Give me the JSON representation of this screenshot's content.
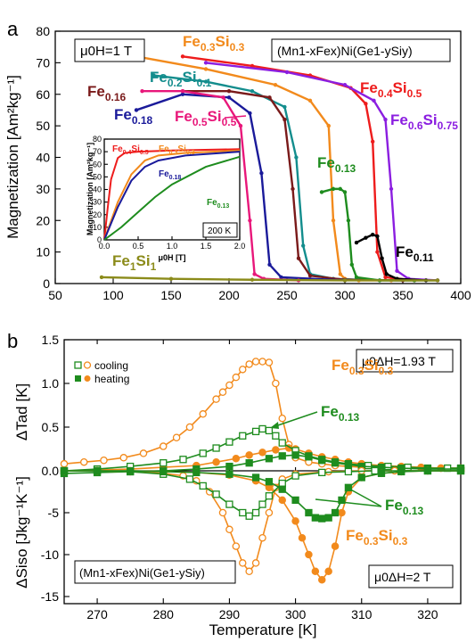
{
  "panel_labels": {
    "a": "a",
    "b": "b"
  },
  "chart_data": [
    {
      "type": "line",
      "panel": "a",
      "ylabel": "Magnetization [Am²kg⁻¹]",
      "xlim": [
        50,
        400
      ],
      "ylim": [
        0,
        80
      ],
      "xticks": [
        50,
        100,
        150,
        200,
        250,
        300,
        350,
        400
      ],
      "yticks": [
        0,
        10,
        20,
        30,
        40,
        50,
        60,
        70,
        80
      ],
      "field_box": "μ0H=1 T",
      "formula_box": "(Mn1-xFex)Ni(Ge1-ySiy)",
      "series": [
        {
          "label": "Fe0.3Si0.3",
          "color": "#f28a1c",
          "x": [
            120,
            180,
            240,
            270,
            286,
            290,
            296,
            300,
            312,
            340,
            380
          ],
          "y": [
            72,
            68,
            63,
            58,
            50,
            20,
            3,
            1.5,
            1,
            1,
            1
          ]
        },
        {
          "label": "Fe0.2Si0.1",
          "color": "#138d8d",
          "x": [
            135,
            180,
            220,
            248,
            258,
            264,
            270,
            290,
            330,
            380
          ],
          "y": [
            66,
            64,
            61,
            56,
            40,
            12,
            3,
            1.5,
            1,
            1
          ]
        },
        {
          "label": "Fe0.16",
          "color": "#7a1a1a",
          "x": [
            160,
            200,
            235,
            248,
            255,
            260,
            270,
            300,
            350
          ],
          "y": [
            61,
            61,
            59,
            52,
            30,
            8,
            2.5,
            1.2,
            1
          ]
        },
        {
          "label": "Fe0.18",
          "color": "#1a1a9a",
          "x": [
            120,
            160,
            200,
            218,
            228,
            235,
            245,
            300
          ],
          "y": [
            55,
            60,
            59,
            54,
            35,
            6,
            2,
            1
          ]
        },
        {
          "label": "Fe0.5Si0.5",
          "color": "#e8177a",
          "x": [
            125,
            160,
            195,
            210,
            218,
            222,
            230,
            260
          ],
          "y": [
            61,
            61,
            59,
            50,
            20,
            3,
            1.5,
            1
          ]
        },
        {
          "label": "Fe0.4Si0.5",
          "color": "#ee1c1c",
          "x": [
            160,
            220,
            270,
            305,
            318,
            324,
            328,
            335,
            360
          ],
          "y": [
            72,
            69,
            66,
            62,
            57,
            45,
            10,
            2,
            1
          ]
        },
        {
          "label": "Fe0.6Si0.75",
          "color": "#8b1ee0",
          "x": [
            180,
            250,
            300,
            325,
            335,
            340,
            345,
            355,
            380
          ],
          "y": [
            70,
            67,
            63,
            58,
            52,
            30,
            4,
            1.5,
            1
          ]
        },
        {
          "label": "Fe0.13",
          "color": "#1e8c1e",
          "x": [
            280,
            290,
            296,
            300,
            303,
            306,
            310,
            330,
            360
          ],
          "y": [
            29,
            30,
            30,
            29,
            20,
            6,
            2,
            1,
            1
          ]
        },
        {
          "label": "Fe0.11",
          "color": "#000000",
          "x": [
            310,
            318,
            324,
            328,
            332,
            336,
            345,
            370
          ],
          "y": [
            13,
            14.5,
            15.5,
            15,
            8,
            3,
            1.5,
            1
          ]
        },
        {
          "label": "Fe1Si1",
          "color": "#8b8b1a",
          "x": [
            90,
            150,
            220,
            300,
            380
          ],
          "y": [
            2,
            1.5,
            1.2,
            1,
            1
          ]
        }
      ],
      "annotations": [
        {
          "text": "Fe",
          "sub": "0.3",
          "text2": "Si",
          "sub2": "0.3",
          "color": "#f28a1c"
        },
        {
          "text": "Fe",
          "sub": "0.2",
          "text2": "Si",
          "sub2": "0.1",
          "color": "#138d8d"
        },
        {
          "text": "Fe",
          "sub": "0.16",
          "color": "#7a1a1a"
        },
        {
          "text": "Fe",
          "sub": "0.18",
          "color": "#1a1a9a"
        },
        {
          "text": "Fe",
          "sub": "0.5",
          "text2": "Si",
          "sub2": "0.5",
          "color": "#e8177a"
        },
        {
          "text": "Fe",
          "sub": "0.4",
          "text2": "Si",
          "sub2": "0.5",
          "color": "#ee1c1c"
        },
        {
          "text": "Fe",
          "sub": "0.6",
          "text2": "Si",
          "sub2": "0.75",
          "color": "#8b1ee0"
        },
        {
          "text": "Fe",
          "sub": "0.13",
          "color": "#1e8c1e"
        },
        {
          "text": "Fe",
          "sub": "0.11",
          "color": "#000000"
        },
        {
          "text": "Fe",
          "sub": "1",
          "text2": "Si",
          "sub2": "1",
          "color": "#8b8b1a"
        }
      ]
    },
    {
      "type": "line",
      "panel": "a-inset",
      "xlabel": "μ0H [T]",
      "ylabel": "Magnetization [Am²kg⁻¹]",
      "xlim": [
        0,
        2
      ],
      "ylim": [
        0,
        80
      ],
      "xticks": [
        0.0,
        0.5,
        1.0,
        1.5,
        2.0
      ],
      "yticks": [
        0,
        10,
        20,
        30,
        40,
        50,
        60,
        70,
        80
      ],
      "temp_box": "200 K",
      "series": [
        {
          "label": "Fe0.4Si0.5",
          "color": "#ee1c1c",
          "x": [
            0,
            0.05,
            0.1,
            0.2,
            0.3,
            0.5,
            1.0,
            2.0
          ],
          "y": [
            0,
            25,
            48,
            65,
            69,
            70,
            71,
            72
          ]
        },
        {
          "label": "Fe0.3Si0.3",
          "color": "#f28a1c",
          "x": [
            0,
            0.1,
            0.2,
            0.4,
            0.6,
            0.8,
            1.2,
            2.0
          ],
          "y": [
            0,
            15,
            30,
            52,
            63,
            67,
            69,
            71
          ]
        },
        {
          "label": "Fe0.18",
          "color": "#1a1a9a",
          "x": [
            0,
            0.1,
            0.2,
            0.4,
            0.6,
            0.8,
            1.2,
            2.0
          ],
          "y": [
            0,
            13,
            26,
            47,
            58,
            63,
            67,
            70
          ]
        },
        {
          "label": "Fe0.13",
          "color": "#1e8c1e",
          "x": [
            0,
            0.25,
            0.5,
            0.75,
            1.0,
            1.5,
            2.0
          ],
          "y": [
            0,
            10,
            22,
            34,
            44,
            58,
            66
          ]
        }
      ],
      "annotations": [
        {
          "text": "Fe",
          "sub": "0.4",
          "text2": "Si",
          "sub2": "0.5",
          "color": "#ee1c1c"
        },
        {
          "text": "Fe",
          "sub": "0.3",
          "text2": "Si",
          "sub2": "0.3",
          "color": "#f28a1c"
        },
        {
          "text": "Fe",
          "sub": "0.18",
          "color": "#1a1a9a"
        },
        {
          "text": "Fe",
          "sub": "0.13",
          "color": "#1e8c1e"
        }
      ]
    },
    {
      "type": "line",
      "panel": "b-top",
      "ylabel": "ΔTad [K]",
      "xlim": [
        265,
        325
      ],
      "ylim": [
        -0.15,
        1.5
      ],
      "yticks": [
        0.0,
        0.5,
        1.0,
        1.5
      ],
      "field_box": "μ0ΔH=1.93 T",
      "legend": {
        "cooling": "cooling",
        "heating": "heating"
      },
      "series": [
        {
          "label": "Fe0.3Si0.3 cooling",
          "color": "#f28a1c",
          "marker": "open-circle",
          "x": [
            265,
            268,
            271,
            274,
            277,
            280,
            282,
            284,
            286,
            288,
            289,
            290,
            291,
            292,
            293,
            294,
            295,
            296,
            297,
            298,
            299,
            300,
            302,
            304,
            306,
            308,
            310,
            313,
            316,
            319,
            322,
            325
          ],
          "y": [
            0.08,
            0.1,
            0.12,
            0.15,
            0.2,
            0.28,
            0.38,
            0.5,
            0.65,
            0.82,
            0.9,
            0.98,
            1.07,
            1.16,
            1.22,
            1.25,
            1.25,
            1.24,
            1.0,
            0.6,
            0.3,
            0.15,
            0.1,
            0.08,
            0.06,
            0.05,
            0.04,
            0.04,
            0.03,
            0.03,
            0.03,
            0.03
          ]
        },
        {
          "label": "Fe0.3Si0.3 heating",
          "color": "#f28a1c",
          "marker": "filled-circle",
          "x": [
            265,
            270,
            275,
            280,
            285,
            288,
            291,
            293,
            295,
            297,
            299,
            300,
            302,
            304,
            306,
            308,
            310,
            313,
            316,
            319,
            322,
            325
          ],
          "y": [
            0.0,
            0.01,
            0.02,
            0.04,
            0.06,
            0.1,
            0.14,
            0.18,
            0.21,
            0.24,
            0.26,
            0.25,
            0.2,
            0.16,
            0.13,
            0.1,
            0.08,
            0.06,
            0.05,
            0.04,
            0.03,
            0.03
          ]
        },
        {
          "label": "Fe0.13 cooling",
          "color": "#1e8c1e",
          "marker": "open-square",
          "x": [
            265,
            270,
            275,
            280,
            283,
            286,
            288,
            290,
            292,
            294,
            295,
            296,
            297,
            298,
            300,
            302,
            304,
            306,
            308,
            311,
            314,
            317,
            320,
            323,
            325
          ],
          "y": [
            0.0,
            0.02,
            0.05,
            0.09,
            0.13,
            0.2,
            0.26,
            0.33,
            0.4,
            0.45,
            0.48,
            0.46,
            0.4,
            0.32,
            0.23,
            0.17,
            0.13,
            0.1,
            0.08,
            0.06,
            0.05,
            0.04,
            0.03,
            0.03,
            0.03
          ]
        },
        {
          "label": "Fe0.13 heating",
          "color": "#1e8c1e",
          "marker": "filled-square",
          "x": [
            265,
            270,
            275,
            280,
            285,
            290,
            293,
            296,
            298,
            300,
            302,
            304,
            306,
            308,
            310,
            313,
            316,
            320,
            325
          ],
          "y": [
            -0.03,
            -0.02,
            -0.01,
            0.0,
            0.02,
            0.05,
            0.09,
            0.14,
            0.17,
            0.18,
            0.16,
            0.12,
            0.09,
            0.07,
            0.05,
            0.04,
            0.03,
            0.02,
            0.02
          ]
        }
      ],
      "annotations": [
        {
          "text": "Fe",
          "sub": "0.3",
          "text2": "Si",
          "sub2": "0.3",
          "color": "#f28a1c"
        },
        {
          "text": "Fe",
          "sub": "0.13",
          "color": "#1e8c1e"
        }
      ]
    },
    {
      "type": "line",
      "panel": "b-bottom",
      "xlabel": "Temperature [K]",
      "ylabel": "ΔSiso [Jkg⁻¹K⁻¹]",
      "xlim": [
        265,
        325
      ],
      "ylim": [
        -16,
        1.2
      ],
      "xticks": [
        270,
        280,
        290,
        300,
        310,
        320
      ],
      "yticks": [
        0,
        -5,
        -10,
        -15
      ],
      "field_box": "μ0ΔH=2 T",
      "formula_box": "(Mn1-xFex)Ni(Ge1-ySiy)",
      "series": [
        {
          "label": "Fe0.3Si0.3 cooling",
          "color": "#f28a1c",
          "marker": "open-circle",
          "x": [
            265,
            270,
            275,
            280,
            283,
            285,
            287,
            289,
            290,
            291,
            292,
            293,
            294,
            295,
            296,
            297,
            298,
            300,
            305,
            310,
            315,
            320,
            325
          ],
          "y": [
            0,
            0,
            -0.1,
            -0.3,
            -0.6,
            -1.2,
            -2.5,
            -5,
            -7,
            -9,
            -11,
            -12,
            -11,
            -8,
            -5,
            -2,
            -1,
            -0.4,
            -0.1,
            0,
            0,
            0,
            0
          ]
        },
        {
          "label": "Fe0.3Si0.3 heating",
          "color": "#f28a1c",
          "marker": "filled-circle",
          "x": [
            265,
            270,
            275,
            280,
            285,
            290,
            294,
            296,
            298,
            300,
            301,
            302,
            303,
            304,
            305,
            306,
            307,
            308,
            310,
            313,
            316,
            320,
            325
          ],
          "y": [
            0,
            0,
            0,
            -0.1,
            -0.2,
            -0.5,
            -1.2,
            -2,
            -3.5,
            -6,
            -8,
            -10,
            -12,
            -13,
            -12,
            -9,
            -5,
            -2.5,
            -0.8,
            -0.3,
            -0.1,
            0,
            0
          ]
        },
        {
          "label": "Fe0.13 cooling",
          "color": "#1e8c1e",
          "marker": "open-square",
          "x": [
            265,
            270,
            275,
            280,
            284,
            286,
            288,
            290,
            292,
            293,
            294,
            295,
            296,
            298,
            300,
            304,
            308,
            312,
            316,
            320,
            325
          ],
          "y": [
            0,
            0,
            -0.1,
            -0.4,
            -1,
            -1.8,
            -2.8,
            -4,
            -5,
            -5.4,
            -5,
            -4,
            -3,
            -1.5,
            -0.6,
            -0.2,
            -0.1,
            0,
            0,
            0,
            0
          ]
        },
        {
          "label": "Fe0.13 heating",
          "color": "#1e8c1e",
          "marker": "filled-square",
          "x": [
            265,
            270,
            275,
            280,
            285,
            290,
            294,
            296,
            298,
            300,
            302,
            303,
            304,
            305,
            306,
            307,
            308,
            310,
            313,
            316,
            320,
            325
          ],
          "y": [
            0,
            0,
            0,
            -0.1,
            -0.2,
            -0.4,
            -0.8,
            -1.3,
            -2.2,
            -3.5,
            -5,
            -5.6,
            -5.7,
            -5.6,
            -5,
            -3.5,
            -2,
            -0.8,
            -0.3,
            -0.1,
            0,
            0
          ]
        }
      ],
      "annotations": [
        {
          "text": "Fe",
          "sub": "0.13",
          "color": "#1e8c1e"
        },
        {
          "text": "Fe",
          "sub": "0.3",
          "text2": "Si",
          "sub2": "0.3",
          "color": "#f28a1c"
        }
      ]
    }
  ]
}
